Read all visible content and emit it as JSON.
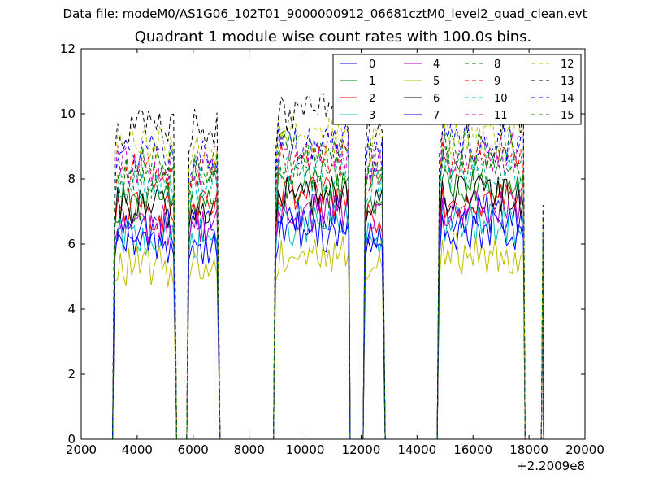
{
  "suptitle": "Data file: modeM0/AS1G06_102T01_9000000912_06681cztM0_level2_quad_clean.evt",
  "chart_data": {
    "type": "line",
    "title": "Quadrant 1 module wise count rates with 100.0s bins.",
    "xlabel": "",
    "ylabel": "",
    "x_offset_label": "+2.2009e8",
    "xlim": [
      2000,
      20000
    ],
    "ylim": [
      0,
      12
    ],
    "xticks": [
      "2000",
      "4000",
      "6000",
      "8000",
      "10000",
      "12000",
      "14000",
      "16000",
      "18000",
      "20000"
    ],
    "yticks": [
      "0",
      "2",
      "4",
      "6",
      "8",
      "10",
      "12"
    ],
    "grid": false,
    "legend_position": "top-right",
    "segments_x": [
      [
        3200,
        5350
      ],
      [
        5850,
        6900
      ],
      [
        8950,
        11550
      ],
      [
        12150,
        12800
      ],
      [
        14800,
        17800
      ],
      [
        18500,
        18500
      ]
    ],
    "gaps_x": [
      [
        5600,
        5750
      ],
      [
        6950,
        8900
      ],
      [
        11600,
        12100
      ],
      [
        12850,
        14700
      ],
      [
        17850,
        18400
      ]
    ],
    "series": [
      {
        "name": "0",
        "color": "#0000ff",
        "dashed": false,
        "level": 6.5
      },
      {
        "name": "1",
        "color": "#007f00",
        "dashed": false,
        "level": 7.3
      },
      {
        "name": "2",
        "color": "#ff0000",
        "dashed": false,
        "level": 7.0
      },
      {
        "name": "3",
        "color": "#00bfbf",
        "dashed": false,
        "level": 6.2
      },
      {
        "name": "4",
        "color": "#bf00bf",
        "dashed": false,
        "level": 6.6
      },
      {
        "name": "5",
        "color": "#bfbf00",
        "dashed": false,
        "level": 5.3
      },
      {
        "name": "6",
        "color": "#000000",
        "dashed": false,
        "level": 7.1
      },
      {
        "name": "7",
        "color": "#0000ff",
        "dashed": false,
        "level": 6.0
      },
      {
        "name": "8",
        "color": "#007f00",
        "dashed": true,
        "level": 8.0
      },
      {
        "name": "9",
        "color": "#ff0000",
        "dashed": true,
        "level": 8.2
      },
      {
        "name": "10",
        "color": "#00bfbf",
        "dashed": true,
        "level": 7.8
      },
      {
        "name": "11",
        "color": "#bf00bf",
        "dashed": true,
        "level": 8.4
      },
      {
        "name": "12",
        "color": "#bfbf00",
        "dashed": true,
        "level": 9.0
      },
      {
        "name": "13",
        "color": "#000000",
        "dashed": true,
        "level": 9.6
      },
      {
        "name": "14",
        "color": "#0000ff",
        "dashed": true,
        "level": 8.7
      },
      {
        "name": "15",
        "color": "#007f00",
        "dashed": true,
        "level": 8.5
      }
    ]
  }
}
